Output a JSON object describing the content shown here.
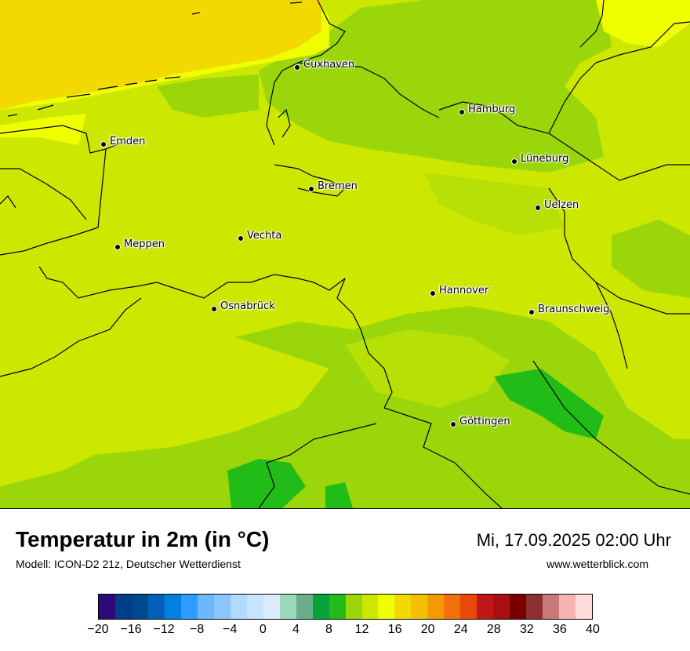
{
  "title": "Temperatur in 2m (in °C)",
  "model": "Modell: ICON-D2 21z, Deutscher Wetterdienst",
  "datetime": "Mi, 17.09.2025 02:00 Uhr",
  "website": "www.wetterblick.com",
  "cities": [
    {
      "name": "Cuxhaven"
    },
    {
      "name": "Hamburg"
    },
    {
      "name": "Emden"
    },
    {
      "name": "Lüneburg"
    },
    {
      "name": "Bremen"
    },
    {
      "name": "Uelzen"
    },
    {
      "name": "Vechta"
    },
    {
      "name": "Meppen"
    },
    {
      "name": "Hannover"
    },
    {
      "name": "Osnabrück"
    },
    {
      "name": "Braunschweig"
    },
    {
      "name": "Göttingen"
    }
  ],
  "legend": {
    "colors": [
      "#2d0a78",
      "#003f88",
      "#00488c",
      "#0060b8",
      "#0080e0",
      "#2c9cff",
      "#6cb8ff",
      "#8cc6ff",
      "#b2daff",
      "#c9e4ff",
      "#dcebff",
      "#9ad8bc",
      "#6aae8c",
      "#08a23a",
      "#22bc18",
      "#9ad60a",
      "#cde800",
      "#f0ff00",
      "#f2da00",
      "#f4c000",
      "#f49a00",
      "#f07010",
      "#e84808",
      "#c01818",
      "#a80f0f",
      "#7a0000",
      "#8c3030",
      "#c87878",
      "#f4b4b4",
      "#ffdcdc"
    ],
    "ticks": [
      "−20",
      "−16",
      "−12",
      "−8",
      "−4",
      "0",
      "4",
      "8",
      "12",
      "16",
      "20",
      "24",
      "28",
      "32",
      "36",
      "40"
    ]
  }
}
